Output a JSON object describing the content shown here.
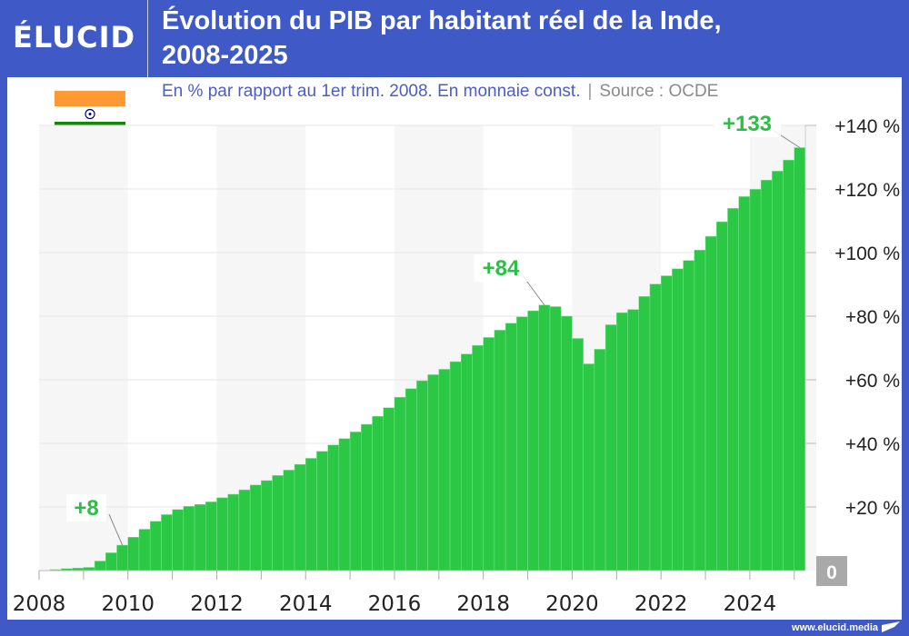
{
  "header": {
    "logo": "ÉLUCID",
    "title_line1": "Évolution du PIB par habitant réel de la Inde,",
    "title_line2": "2008-2025"
  },
  "subtitle": {
    "text": "En % par rapport au 1er trim. 2008. En monnaie const.",
    "separator": "|",
    "source": "Source : OCDE"
  },
  "footer": {
    "url": "www.elucid.media"
  },
  "flag": {
    "icon": "india-flag-icon",
    "colors": [
      "#ff9933",
      "#ffffff",
      "#138808"
    ],
    "chakra": "#000080"
  },
  "colors": {
    "brand": "#3f59c6",
    "bar": "#2bc846",
    "label": "#2bbf45",
    "band": "#f6f6f6"
  },
  "chart_data": {
    "type": "bar",
    "title": "Évolution du PIB par habitant réel de la Inde, 2008-2025",
    "ylabel": "",
    "xlabel": "",
    "frequency": "quarterly",
    "start": "2008-Q1",
    "ylim": [
      0,
      140
    ],
    "grid": true,
    "xticks": [
      "2008",
      "2010",
      "2012",
      "2014",
      "2016",
      "2018",
      "2020",
      "2022",
      "2024"
    ],
    "yticks": [
      {
        "value": 0,
        "label": "0"
      },
      {
        "value": 20,
        "label": "+20 %"
      },
      {
        "value": 40,
        "label": "+40 %"
      },
      {
        "value": 60,
        "label": "+60 %"
      },
      {
        "value": 80,
        "label": "+80 %"
      },
      {
        "value": 100,
        "label": "+100 %"
      },
      {
        "value": 120,
        "label": "+120 %"
      },
      {
        "value": 140,
        "label": "+140 %"
      }
    ],
    "values": [
      0,
      0.3,
      0.6,
      0.8,
      1,
      3,
      5.6,
      8,
      10.5,
      13,
      15.5,
      17.6,
      19.2,
      20.2,
      20.8,
      21.6,
      22.9,
      24,
      25.4,
      26.9,
      28.3,
      29.9,
      31.6,
      33.4,
      35.3,
      37.5,
      39.5,
      41.5,
      43.6,
      46,
      48.5,
      51.2,
      54.5,
      57.2,
      59.7,
      61.6,
      63.3,
      65.7,
      68.1,
      70.8,
      73.3,
      75.6,
      77.8,
      79.8,
      81.7,
      83.5,
      83,
      80,
      73,
      65,
      69.6,
      77.3,
      81.1,
      82.1,
      86.2,
      90.1,
      92.7,
      94.9,
      97.5,
      100.8,
      105.1,
      109.7,
      113.9,
      117.6,
      119.9,
      122.8,
      125.6,
      129.1,
      133
    ],
    "annotations": [
      {
        "label": "+8",
        "index": 7
      },
      {
        "label": "+84",
        "index": 45
      },
      {
        "label": "+133",
        "index": 68
      }
    ]
  }
}
